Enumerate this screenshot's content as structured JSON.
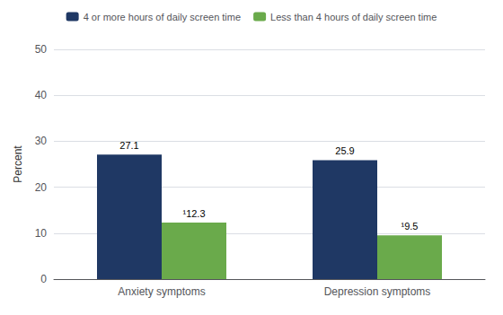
{
  "chart_data": {
    "type": "bar",
    "categories": [
      "Anxiety symptoms",
      "Depression symptoms"
    ],
    "series": [
      {
        "name": "4 or more hours of daily screen time",
        "color": "#1f3864",
        "values": [
          27.1,
          25.9
        ]
      },
      {
        "name": "Less than 4 hours of daily screen time",
        "color": "#6aaa4b",
        "values": [
          12.3,
          9.5
        ],
        "value_labels": [
          "¹12.3",
          "¹9.5"
        ]
      }
    ],
    "ylabel": "Percent",
    "ylim": [
      0,
      50
    ],
    "yticks": [
      0,
      10,
      20,
      30,
      40,
      50
    ],
    "grid": true,
    "legend": "top",
    "data_labels": true
  }
}
